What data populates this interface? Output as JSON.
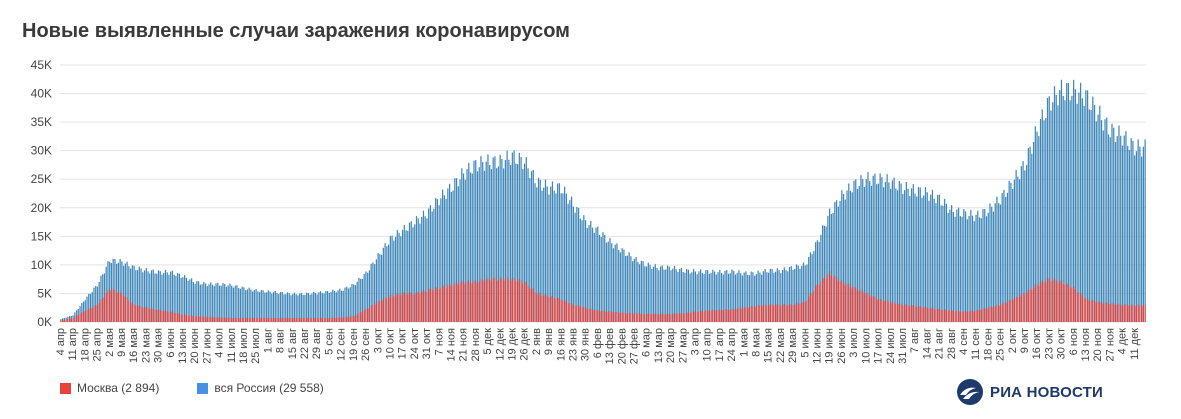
{
  "title": "Новые выявленные случаи заражения коронавирусом",
  "legend": {
    "moscow_label": "Москва (2 894)",
    "russia_label": "вся Россия (29 558)"
  },
  "logo": {
    "text": "РИА НОВОСТИ"
  },
  "colors": {
    "moscow": "#e8413b",
    "russia": "#4a90e2",
    "russia_bars": "#3d86b8",
    "gridline": "#e3e3e3",
    "logo": "#1d3a6b"
  },
  "chart_data": {
    "type": "bar",
    "stacked": "overlapped",
    "title": "Новые выявленные случаи заражения коронавирусом",
    "ylim": [
      0,
      45000
    ],
    "yticks": [
      "0K",
      "5K",
      "10K",
      "15K",
      "20K",
      "25K",
      "30K",
      "35K",
      "40K",
      "45K"
    ],
    "grid": true,
    "legend_position": "bottom-left",
    "categories": [
      "4 апр",
      "11 апр",
      "18 апр",
      "25 апр",
      "2 мая",
      "9 мая",
      "16 мая",
      "23 мая",
      "30 мая",
      "6 июн",
      "13 июн",
      "20 июн",
      "27 июн",
      "4 июл",
      "11 июл",
      "18 июл",
      "25 июл",
      "1 авг",
      "8 авг",
      "15 авг",
      "22 авг",
      "29 авг",
      "5 сен",
      "12 сен",
      "19 сен",
      "26 сен",
      "3 окт",
      "10 окт",
      "17 окт",
      "24 окт",
      "31 окт",
      "7 ноя",
      "14 ноя",
      "21 ноя",
      "28 ноя",
      "5 дек",
      "12 дек",
      "19 дек",
      "26 дек",
      "2 янв",
      "9 янв",
      "16 янв",
      "23 янв",
      "30 янв",
      "6 фев",
      "13 фев",
      "20 фев",
      "27 фев",
      "6 мар",
      "13 мар",
      "20 мар",
      "27 мар",
      "3 апр",
      "10 апр",
      "17 апр",
      "24 апр",
      "1 мая",
      "8 мая",
      "15 мая",
      "22 мая",
      "29 мая",
      "5 июн",
      "12 июн",
      "19 июн",
      "26 июн",
      "3 июл",
      "10 июл",
      "17 июл",
      "24 июл",
      "31 июл",
      "7 авг",
      "14 авг",
      "21 авг",
      "28 авг",
      "4 сен",
      "11 сен",
      "18 сен",
      "25 сен",
      "2 окт",
      "9 окт",
      "16 окт",
      "23 окт",
      "30 окт",
      "6 ноя",
      "13 ноя",
      "20 ноя",
      "27 ноя",
      "4 дек",
      "11 дек"
    ],
    "series": [
      {
        "name": "вся Россия (29 558)",
        "values": [
          500,
          1200,
          4000,
          6500,
          10800,
          10500,
          9500,
          9000,
          8700,
          8700,
          8000,
          7000,
          6600,
          6600,
          6400,
          5900,
          5500,
          5300,
          5100,
          4900,
          4900,
          5100,
          5300,
          5600,
          6500,
          8500,
          11500,
          14500,
          16000,
          17500,
          19000,
          21500,
          23500,
          26000,
          27500,
          28000,
          28000,
          29000,
          28000,
          24500,
          23500,
          23500,
          20500,
          17500,
          16000,
          14000,
          12500,
          11000,
          10000,
          9500,
          9500,
          9000,
          8800,
          8800,
          8700,
          8800,
          8500,
          8500,
          9000,
          9000,
          9500,
          10000,
          14000,
          19000,
          22000,
          24000,
          25000,
          25000,
          24500,
          23500,
          23000,
          22500,
          21500,
          19500,
          19000,
          18500,
          19500,
          21500,
          24500,
          27500,
          33500,
          38500,
          40500,
          40500,
          39500,
          36500,
          33500,
          32500,
          30500
        ]
      },
      {
        "name": "Москва (2 894)",
        "values": [
          300,
          700,
          2000,
          3000,
          5800,
          5000,
          3000,
          2500,
          2100,
          1800,
          1300,
          1000,
          900,
          800,
          700,
          700,
          700,
          700,
          700,
          700,
          700,
          700,
          700,
          800,
          1000,
          2200,
          3500,
          4500,
          5000,
          5000,
          5500,
          6000,
          6500,
          7000,
          7000,
          7500,
          7500,
          7500,
          7000,
          5000,
          4500,
          4000,
          3000,
          2500,
          2000,
          1800,
          1600,
          1500,
          1400,
          1400,
          1400,
          1500,
          1800,
          2000,
          2100,
          2200,
          2500,
          2800,
          3000,
          3000,
          3000,
          3500,
          6500,
          8500,
          7000,
          6000,
          5000,
          4000,
          3500,
          3000,
          2800,
          2500,
          2200,
          2000,
          1800,
          2000,
          2500,
          3000,
          4000,
          5000,
          6500,
          7500,
          7000,
          6000,
          4000,
          3500,
          3200,
          3000,
          2900
        ]
      }
    ]
  }
}
